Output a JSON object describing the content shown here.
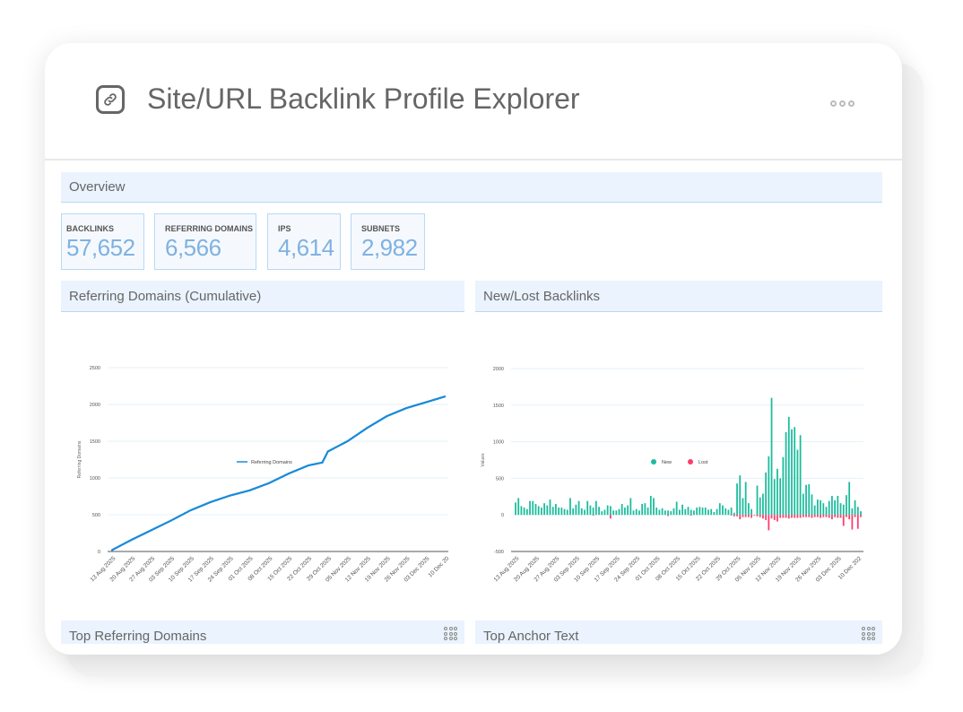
{
  "header": {
    "title": "Site/URL Backlink Profile Explorer",
    "icon": "link-icon",
    "menu_icon": "more-horizontal-icon"
  },
  "overview": {
    "title": "Overview",
    "kpis": [
      {
        "label": "BACKLINKS",
        "value": "57,652"
      },
      {
        "label": "REFERRING DOMAINS",
        "value": "6,566"
      },
      {
        "label": "IPS",
        "value": "4,614"
      },
      {
        "label": "SUBNETS",
        "value": "2,982"
      }
    ]
  },
  "panels": {
    "ref_domains": "Referring Domains (Cumulative)",
    "new_lost": "New/Lost Backlinks",
    "top_domains": "Top Referring Domains",
    "top_anchor": "Top Anchor Text"
  },
  "colors": {
    "accent": "#1a8ad8",
    "new": "#1abc9c",
    "lost": "#ff3b6b",
    "kpi_value": "#7fb2e0"
  },
  "chart_data": [
    {
      "type": "line",
      "title": "Referring Domains (Cumulative)",
      "ylabel": "Referring Domains",
      "ylim": [
        0,
        2500
      ],
      "yticks": [
        "0",
        "500",
        "1000",
        "1500",
        "2000",
        "2500"
      ],
      "xticks": [
        "13 Aug 2025",
        "20 Aug 2025",
        "27 Aug 2025",
        "03 Sep 2025",
        "10 Sep 2025",
        "17 Sep 2025",
        "24 Sep 2025",
        "01 Oct 2025",
        "08 Oct 2025",
        "15 Oct 2025",
        "22 Oct 2025",
        "29 Oct 2025",
        "05 Nov 2025",
        "12 Nov 2025",
        "19 Nov 2025",
        "26 Nov 2025",
        "03 Dec 2025",
        "10 Dec 20"
      ],
      "legend": [
        "Referring Domains"
      ],
      "series": [
        {
          "name": "Referring Domains",
          "points": [
            [
              0,
              20
            ],
            [
              7,
              160
            ],
            [
              14,
              290
            ],
            [
              21,
              420
            ],
            [
              28,
              560
            ],
            [
              35,
              670
            ],
            [
              42,
              760
            ],
            [
              49,
              830
            ],
            [
              56,
              930
            ],
            [
              63,
              1060
            ],
            [
              70,
              1170
            ],
            [
              75,
              1210
            ],
            [
              77,
              1360
            ],
            [
              84,
              1500
            ],
            [
              91,
              1680
            ],
            [
              98,
              1840
            ],
            [
              105,
              1950
            ],
            [
              112,
              2030
            ],
            [
              119,
              2110
            ]
          ]
        }
      ]
    },
    {
      "type": "bar",
      "title": "New/Lost Backlinks",
      "ylabel": "Values",
      "ylim": [
        -500,
        2000
      ],
      "yticks": [
        "-500",
        "0",
        "500",
        "1000",
        "1500",
        "2000"
      ],
      "xticks": [
        "13 Aug 2025",
        "20 Aug 2025",
        "27 Aug 2025",
        "03 Sep 2025",
        "10 Sep 2025",
        "17 Sep 2025",
        "24 Sep 2025",
        "01 Oct 2025",
        "08 Oct 2025",
        "15 Oct 2025",
        "22 Oct 2025",
        "29 Oct 2025",
        "05 Nov 2025",
        "12 Nov 2025",
        "19 Nov 2025",
        "26 Nov 2025",
        "03 Dec 2025",
        "10 Dec 202"
      ],
      "legend": [
        "New",
        "Lost"
      ],
      "series": [
        {
          "name": "New",
          "values": [
            170,
            230,
            120,
            100,
            80,
            190,
            190,
            150,
            120,
            100,
            160,
            130,
            210,
            110,
            150,
            100,
            100,
            80,
            70,
            230,
            90,
            140,
            190,
            90,
            70,
            190,
            130,
            100,
            190,
            110,
            50,
            70,
            130,
            120,
            60,
            60,
            80,
            150,
            100,
            130,
            230,
            60,
            80,
            60,
            150,
            160,
            100,
            260,
            230,
            100,
            70,
            90,
            60,
            60,
            50,
            90,
            180,
            70,
            140,
            80,
            110,
            70,
            60,
            100,
            110,
            100,
            100,
            70,
            80,
            40,
            80,
            160,
            130,
            90,
            70,
            100,
            30,
            430,
            540,
            230,
            450,
            160,
            80,
            0,
            400,
            240,
            290,
            580,
            800,
            1600,
            490,
            630,
            500,
            790,
            1130,
            1340,
            1170,
            1200,
            890,
            1090,
            290,
            410,
            420,
            280,
            130,
            210,
            200,
            160,
            110,
            190,
            260,
            200,
            260,
            160,
            140,
            270,
            450,
            90,
            200,
            110,
            50
          ]
        },
        {
          "name": "Lost",
          "values": [
            0,
            0,
            0,
            0,
            0,
            0,
            0,
            0,
            0,
            0,
            0,
            0,
            0,
            0,
            0,
            0,
            0,
            0,
            0,
            0,
            0,
            0,
            0,
            0,
            0,
            0,
            0,
            -10,
            0,
            0,
            0,
            0,
            0,
            -50,
            0,
            0,
            0,
            0,
            0,
            0,
            0,
            0,
            0,
            0,
            0,
            0,
            0,
            0,
            0,
            0,
            0,
            0,
            0,
            -15,
            0,
            0,
            0,
            0,
            0,
            0,
            0,
            -10,
            0,
            0,
            0,
            0,
            0,
            0,
            0,
            0,
            0,
            0,
            0,
            0,
            0,
            -10,
            -20,
            -20,
            -60,
            -30,
            -30,
            -30,
            -40,
            -10,
            -20,
            -30,
            -50,
            -70,
            -210,
            -50,
            -70,
            -90,
            -40,
            -40,
            -40,
            -50,
            -40,
            -40,
            -40,
            -40,
            -30,
            -30,
            -30,
            -40,
            -30,
            -30,
            -40,
            -30,
            -30,
            -40,
            -60,
            -30,
            -40,
            -40,
            -150,
            -30,
            -60,
            -200,
            -30,
            -190,
            -30
          ]
        }
      ]
    }
  ]
}
